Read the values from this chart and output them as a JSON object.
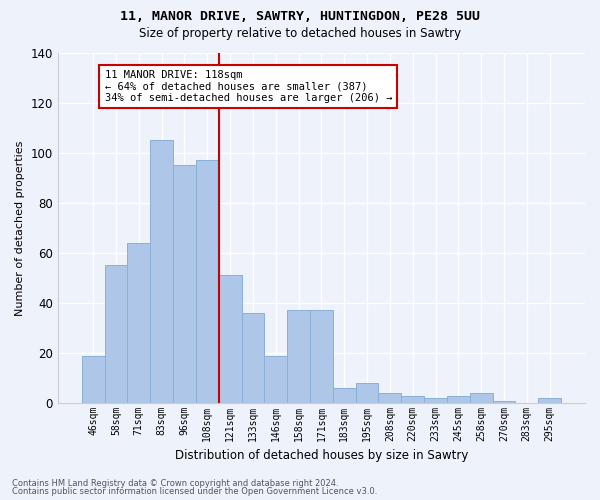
{
  "title1": "11, MANOR DRIVE, SAWTRY, HUNTINGDON, PE28 5UU",
  "title2": "Size of property relative to detached houses in Sawtry",
  "xlabel": "Distribution of detached houses by size in Sawtry",
  "ylabel": "Number of detached properties",
  "categories": [
    "46sqm",
    "58sqm",
    "71sqm",
    "83sqm",
    "96sqm",
    "108sqm",
    "121sqm",
    "133sqm",
    "146sqm",
    "158sqm",
    "171sqm",
    "183sqm",
    "195sqm",
    "208sqm",
    "220sqm",
    "233sqm",
    "245sqm",
    "258sqm",
    "270sqm",
    "283sqm",
    "295sqm"
  ],
  "values": [
    19,
    55,
    64,
    105,
    95,
    97,
    51,
    36,
    19,
    37,
    37,
    6,
    8,
    4,
    3,
    2,
    3,
    4,
    1,
    0,
    2
  ],
  "bar_color": "#aec6e8",
  "bar_edge_color": "#8ab0d8",
  "vline_x_idx": 5.5,
  "annotation_label": "11 MANOR DRIVE: 118sqm",
  "annotation_line1": "← 64% of detached houses are smaller (387)",
  "annotation_line2": "34% of semi-detached houses are larger (206) →",
  "annotation_box_color": "#ffffff",
  "annotation_box_edge_color": "#cc0000",
  "vline_color": "#cc0000",
  "background_color": "#eef2fb",
  "grid_color": "#ffffff",
  "ylim": [
    0,
    140
  ],
  "yticks": [
    0,
    20,
    40,
    60,
    80,
    100,
    120,
    140
  ],
  "footer1": "Contains HM Land Registry data © Crown copyright and database right 2024.",
  "footer2": "Contains public sector information licensed under the Open Government Licence v3.0."
}
